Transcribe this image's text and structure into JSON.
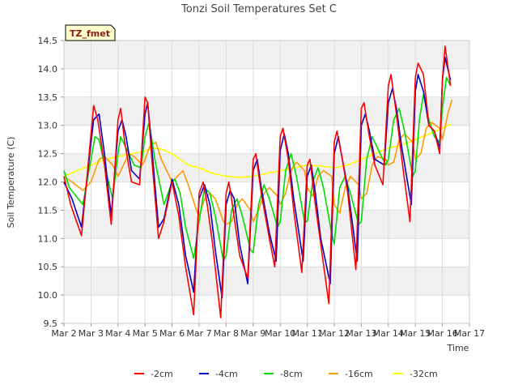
{
  "chart_data": {
    "type": "line",
    "title": "Tonzi Soil Temperatures Set C",
    "xlabel": "Time",
    "ylabel": "Soil Temperature (C)",
    "badge": "TZ_fmet",
    "xlim": [
      2,
      17
    ],
    "ylim": [
      9.5,
      14.5
    ],
    "x_ticks": [
      2,
      3,
      4,
      5,
      6,
      7,
      8,
      9,
      10,
      11,
      12,
      13,
      14,
      15,
      16,
      17
    ],
    "x_tick_labels": [
      "Mar 2",
      "Mar 3",
      "Mar 4",
      "Mar 5",
      "Mar 6",
      "Mar 7",
      "Mar 8",
      "Mar 9",
      "Mar 10",
      "Mar 11",
      "Mar 12",
      "Mar 13",
      "Mar 14",
      "Mar 15",
      "Mar 16",
      "Mar 17"
    ],
    "y_ticks": [
      9.5,
      10.0,
      10.5,
      11.0,
      11.5,
      12.0,
      12.5,
      13.0,
      13.5,
      14.0,
      14.5
    ],
    "y_tick_labels": [
      "9.5",
      "10.0",
      "10.5",
      "11.0",
      "11.5",
      "12.0",
      "12.5",
      "13.0",
      "13.5",
      "14.0",
      "14.5"
    ],
    "grid": true,
    "legend_position": "bottom",
    "series": [
      {
        "name": "-2cm",
        "color": "#ff0000",
        "x": [
          2.0,
          2.25,
          2.65,
          3.1,
          3.25,
          3.5,
          3.75,
          4.0,
          4.1,
          4.25,
          4.5,
          4.8,
          5.0,
          5.1,
          5.25,
          5.5,
          5.7,
          6.0,
          6.25,
          6.5,
          6.8,
          7.0,
          7.15,
          7.3,
          7.5,
          7.8,
          8.0,
          8.1,
          8.2,
          8.5,
          8.8,
          9.0,
          9.1,
          9.3,
          9.6,
          9.8,
          10.0,
          10.1,
          10.3,
          10.5,
          10.8,
          11.0,
          11.1,
          11.3,
          11.5,
          11.8,
          12.0,
          12.1,
          12.3,
          12.5,
          12.8,
          13.0,
          13.1,
          13.3,
          13.5,
          13.8,
          14.0,
          14.1,
          14.3,
          14.5,
          14.8,
          15.0,
          15.1,
          15.3,
          15.5,
          15.7,
          15.9,
          16.0,
          16.1,
          16.3
        ],
        "y": [
          12.1,
          11.6,
          11.05,
          13.35,
          13.1,
          12.3,
          11.25,
          13.1,
          13.3,
          12.7,
          12.0,
          11.95,
          13.5,
          13.4,
          12.4,
          11.0,
          11.3,
          12.0,
          11.4,
          10.5,
          9.65,
          11.8,
          12.0,
          11.6,
          10.9,
          9.6,
          11.8,
          12.0,
          11.7,
          10.7,
          10.3,
          12.4,
          12.5,
          11.8,
          11.0,
          10.5,
          12.8,
          12.95,
          12.4,
          11.5,
          10.4,
          12.3,
          12.4,
          11.6,
          10.9,
          9.85,
          12.7,
          12.9,
          12.4,
          11.8,
          10.45,
          13.3,
          13.4,
          12.8,
          12.3,
          11.95,
          13.7,
          13.9,
          13.2,
          12.4,
          11.3,
          13.85,
          14.1,
          13.9,
          13.0,
          12.9,
          12.5,
          13.8,
          14.4,
          13.7
        ]
      },
      {
        "name": "-4cm",
        "color": "#0000cc",
        "x": [
          2.0,
          2.3,
          2.65,
          3.1,
          3.3,
          3.5,
          3.75,
          4.0,
          4.15,
          4.3,
          4.5,
          4.8,
          5.0,
          5.1,
          5.25,
          5.5,
          5.7,
          6.0,
          6.25,
          6.5,
          6.8,
          7.0,
          7.2,
          7.4,
          7.6,
          7.85,
          8.0,
          8.15,
          8.3,
          8.5,
          8.8,
          9.0,
          9.15,
          9.3,
          9.6,
          9.85,
          10.0,
          10.15,
          10.3,
          10.5,
          10.85,
          11.0,
          11.15,
          11.3,
          11.5,
          11.85,
          12.0,
          12.15,
          12.3,
          12.5,
          12.85,
          13.0,
          13.15,
          13.3,
          13.5,
          13.85,
          14.0,
          14.15,
          14.3,
          14.5,
          14.85,
          15.0,
          15.1,
          15.3,
          15.5,
          15.7,
          15.9,
          16.0,
          16.1,
          16.3
        ],
        "y": [
          12.0,
          11.7,
          11.2,
          13.1,
          13.2,
          12.5,
          11.4,
          12.9,
          13.1,
          12.8,
          12.2,
          12.05,
          13.2,
          13.4,
          12.6,
          11.2,
          11.35,
          12.05,
          11.6,
          10.7,
          10.05,
          11.7,
          11.95,
          11.6,
          10.8,
          9.95,
          11.6,
          11.85,
          11.7,
          10.9,
          10.2,
          12.2,
          12.4,
          11.9,
          11.1,
          10.6,
          12.55,
          12.85,
          12.5,
          11.7,
          10.6,
          12.1,
          12.3,
          11.8,
          11.0,
          10.2,
          12.5,
          12.8,
          12.4,
          11.9,
          10.6,
          13.0,
          13.2,
          12.9,
          12.4,
          12.3,
          13.4,
          13.65,
          13.3,
          12.6,
          11.6,
          13.6,
          13.9,
          13.6,
          13.0,
          12.9,
          12.6,
          13.8,
          14.2,
          13.8
        ]
      },
      {
        "name": "-8cm",
        "color": "#00dd00",
        "x": [
          2.0,
          2.2,
          2.7,
          3.0,
          3.15,
          3.3,
          3.5,
          3.8,
          4.0,
          4.1,
          4.3,
          4.6,
          4.85,
          5.0,
          5.15,
          5.4,
          5.7,
          6.0,
          6.1,
          6.3,
          6.5,
          6.8,
          7.0,
          7.2,
          7.4,
          7.6,
          7.9,
          8.0,
          8.2,
          8.4,
          8.6,
          8.9,
          9.0,
          9.2,
          9.4,
          9.6,
          9.9,
          10.0,
          10.2,
          10.4,
          10.6,
          10.9,
          11.0,
          11.2,
          11.4,
          11.6,
          11.9,
          12.0,
          12.2,
          12.4,
          12.6,
          12.9,
          13.0,
          13.2,
          13.4,
          13.6,
          13.9,
          14.0,
          14.2,
          14.4,
          14.6,
          14.9,
          15.0,
          15.15,
          15.3,
          15.5,
          15.7,
          15.9,
          16.0,
          16.15,
          16.3
        ],
        "y": [
          12.2,
          11.9,
          11.6,
          12.4,
          12.8,
          12.75,
          12.3,
          11.7,
          12.5,
          12.8,
          12.6,
          12.3,
          12.25,
          12.8,
          13.05,
          12.3,
          11.6,
          12.0,
          12.05,
          11.8,
          11.2,
          10.65,
          11.3,
          11.9,
          11.8,
          11.4,
          10.6,
          10.7,
          11.5,
          11.7,
          11.4,
          10.8,
          10.75,
          11.6,
          11.95,
          11.7,
          11.2,
          11.3,
          12.2,
          12.5,
          12.1,
          11.3,
          11.3,
          12.0,
          12.25,
          11.9,
          11.1,
          10.9,
          11.9,
          12.1,
          11.8,
          11.25,
          11.3,
          12.4,
          12.8,
          12.6,
          12.3,
          12.4,
          13.1,
          13.3,
          12.9,
          12.1,
          12.2,
          13.1,
          13.55,
          13.1,
          12.8,
          12.7,
          13.3,
          13.85,
          13.7
        ]
      },
      {
        "name": "-16cm",
        "color": "#ff9900",
        "x": [
          2.0,
          2.3,
          2.7,
          3.0,
          3.3,
          3.5,
          3.8,
          4.0,
          4.2,
          4.4,
          4.6,
          4.9,
          5.0,
          5.2,
          5.4,
          5.6,
          5.9,
          6.0,
          6.2,
          6.4,
          6.6,
          6.9,
          7.0,
          7.2,
          7.4,
          7.6,
          7.9,
          8.0,
          8.2,
          8.4,
          8.6,
          8.9,
          9.0,
          9.2,
          9.4,
          9.6,
          9.9,
          10.0,
          10.2,
          10.4,
          10.6,
          10.9,
          11.0,
          11.2,
          11.4,
          11.6,
          11.9,
          12.0,
          12.2,
          12.4,
          12.6,
          12.9,
          13.0,
          13.2,
          13.4,
          13.6,
          13.9,
          14.0,
          14.2,
          14.4,
          14.6,
          14.9,
          15.0,
          15.2,
          15.4,
          15.6,
          15.9,
          16.0,
          16.2,
          16.35
        ],
        "y": [
          12.1,
          12.0,
          11.85,
          12.0,
          12.4,
          12.45,
          12.3,
          12.1,
          12.3,
          12.5,
          12.45,
          12.3,
          12.4,
          12.65,
          12.7,
          12.4,
          12.1,
          12.0,
          12.1,
          12.2,
          11.95,
          11.5,
          11.4,
          11.7,
          11.8,
          11.7,
          11.3,
          11.25,
          11.3,
          11.6,
          11.7,
          11.5,
          11.3,
          11.5,
          11.8,
          11.9,
          11.75,
          11.6,
          11.8,
          12.2,
          12.35,
          12.2,
          11.9,
          11.75,
          12.1,
          12.2,
          12.1,
          11.6,
          11.45,
          11.9,
          12.1,
          11.95,
          11.7,
          11.8,
          12.3,
          12.45,
          12.4,
          12.3,
          12.35,
          12.75,
          12.85,
          12.7,
          12.4,
          12.5,
          12.95,
          13.05,
          12.95,
          12.75,
          13.2,
          13.45
        ]
      },
      {
        "name": "-32cm",
        "color": "#ffff00",
        "x": [
          2.0,
          2.5,
          3.0,
          3.5,
          4.0,
          4.5,
          5.0,
          5.3,
          5.6,
          6.0,
          6.3,
          6.6,
          7.0,
          7.5,
          8.0,
          8.5,
          9.0,
          9.5,
          10.0,
          10.5,
          11.0,
          11.5,
          12.0,
          12.5,
          13.0,
          13.5,
          14.0,
          14.5,
          15.0,
          15.5,
          16.0,
          16.3
        ],
        "y": [
          12.1,
          12.2,
          12.3,
          12.4,
          12.45,
          12.5,
          12.55,
          12.6,
          12.58,
          12.5,
          12.4,
          12.3,
          12.25,
          12.15,
          12.1,
          12.08,
          12.1,
          12.15,
          12.2,
          12.25,
          12.3,
          12.28,
          12.25,
          12.3,
          12.4,
          12.5,
          12.6,
          12.65,
          12.75,
          12.85,
          12.95,
          13.02
        ]
      }
    ]
  }
}
